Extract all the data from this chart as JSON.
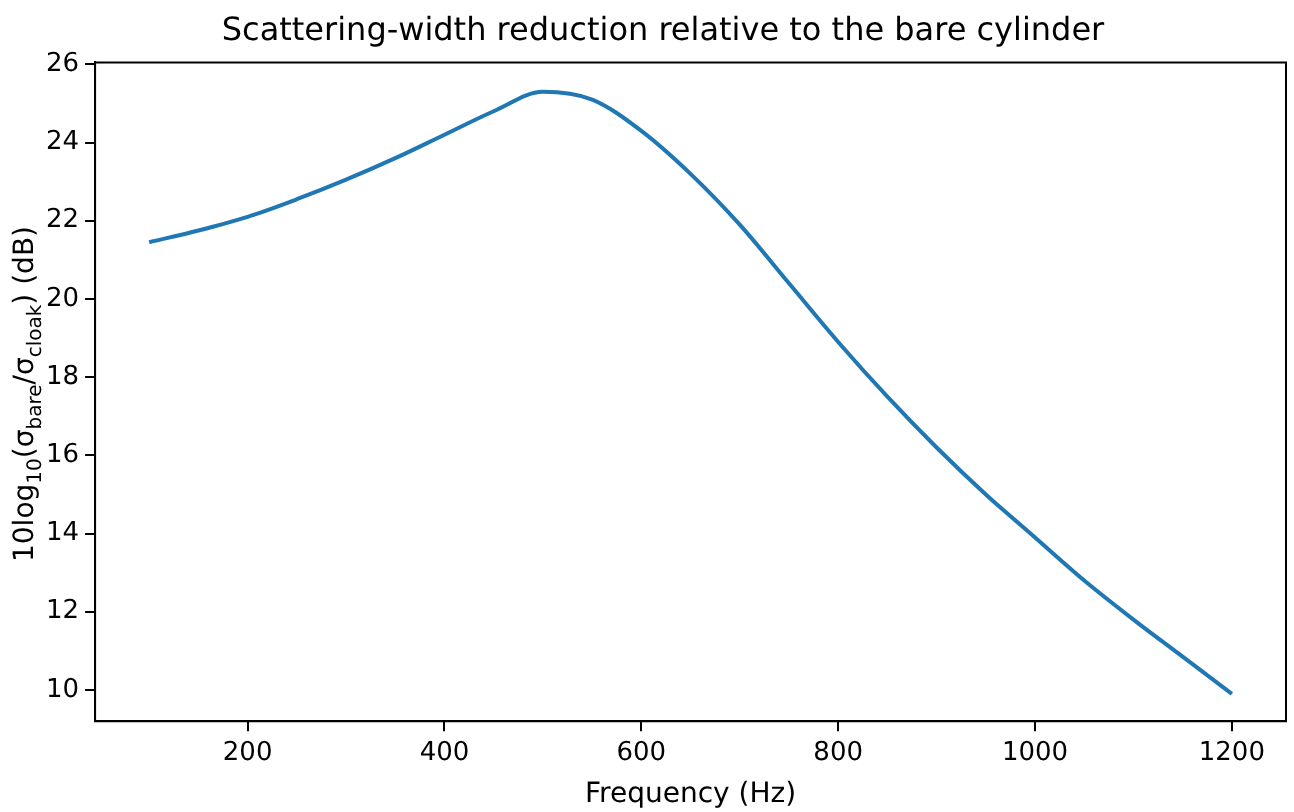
{
  "chart_data": {
    "type": "line",
    "title": "Scattering-width reduction relative to the bare cylinder",
    "xlabel": "Frequency (Hz)",
    "ylabel": "10log$_{10}$(σ$_{bare}$/σ$_{cloak}$) (dB)",
    "x": [
      100,
      150,
      200,
      250,
      300,
      350,
      400,
      450,
      500,
      550,
      600,
      650,
      700,
      750,
      800,
      850,
      900,
      950,
      1000,
      1050,
      1100,
      1150,
      1200
    ],
    "series": [
      {
        "color": "#1f77b4",
        "values": [
          21.45,
          21.75,
          22.1,
          22.55,
          23.05,
          23.6,
          24.2,
          24.8,
          25.3,
          25.1,
          24.3,
          23.2,
          21.9,
          20.4,
          18.9,
          17.5,
          16.2,
          15.0,
          13.9,
          12.8,
          11.8,
          10.85,
          9.9
        ]
      }
    ],
    "xlim": [
      45,
      1255
    ],
    "xticks": [
      200,
      400,
      600,
      800,
      1000,
      1200
    ],
    "ylim": [
      9.2,
      26.05
    ],
    "yticks": [
      10,
      12,
      14,
      16,
      18,
      20,
      22,
      24,
      26
    ],
    "grid": false,
    "legend": false,
    "marker": "none",
    "line_style": "solid"
  }
}
